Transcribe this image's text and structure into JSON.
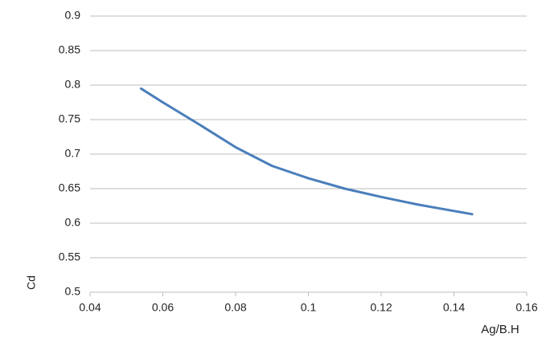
{
  "chart_data": {
    "type": "line",
    "x_label": "Ag/B.H",
    "y_label": "Cd",
    "x": [
      0.054,
      0.06,
      0.07,
      0.08,
      0.09,
      0.1,
      0.11,
      0.12,
      0.13,
      0.145
    ],
    "series": [
      {
        "name": "Cd",
        "color": "#4a7ebb",
        "values": [
          0.795,
          0.775,
          0.743,
          0.71,
          0.683,
          0.665,
          0.65,
          0.638,
          0.627,
          0.613
        ]
      }
    ],
    "xlim": [
      0.04,
      0.16
    ],
    "xticks": [
      0.04,
      0.06,
      0.08,
      0.1,
      0.12,
      0.14,
      0.16
    ],
    "ylim": [
      0.5,
      0.9
    ],
    "yticks": [
      0.5,
      0.55,
      0.6,
      0.65,
      0.7,
      0.75,
      0.8,
      0.85,
      0.9
    ],
    "grid": true
  }
}
